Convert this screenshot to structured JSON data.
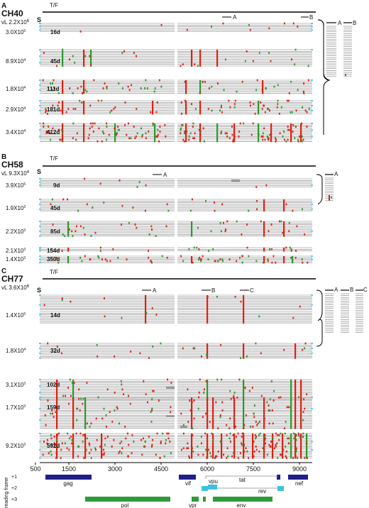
{
  "panels": [
    {
      "letter": "A",
      "name": "CH40",
      "vl": "vL 2.2X10",
      "vl_exp": "6",
      "tf_label": "T/F",
      "s_label": "S",
      "reference_segments": [
        "A",
        "B"
      ],
      "side_columns": [
        "A",
        "B"
      ],
      "groups": [
        {
          "load": "3.0X10",
          "exp": "5",
          "day": "16d"
        },
        {
          "load": "8.9X10",
          "exp": "4",
          "day": "45d"
        },
        {
          "load": "1.8X10",
          "exp": "4",
          "day": "111d"
        },
        {
          "load": "2.9X10",
          "exp": "4",
          "day": "181d"
        },
        {
          "load": "3.4X10",
          "exp": "4",
          "day": "412d"
        }
      ]
    },
    {
      "letter": "B",
      "name": "CH58",
      "vl": "vL 9.3X10",
      "vl_exp": "4",
      "tf_label": "T/F",
      "s_label": "S",
      "reference_segments": [
        "A"
      ],
      "side_columns": [
        "A"
      ],
      "groups": [
        {
          "load": "3.9X10",
          "exp": "5",
          "day": "9d"
        },
        {
          "load": "1.9X10",
          "exp": "3",
          "day": "45d"
        },
        {
          "load": "2.2X10",
          "exp": "3",
          "day": "85d"
        },
        {
          "load": "2.1X10",
          "exp": "3",
          "day": "154d"
        },
        {
          "load": "1.4X10",
          "exp": "3",
          "day": "350d"
        }
      ]
    },
    {
      "letter": "C",
      "name": "CH77",
      "vl": "vL 3.6X10",
      "vl_exp": "6",
      "tf_label": "T/F",
      "s_label": "S",
      "reference_segments": [
        "A",
        "B",
        "C"
      ],
      "side_columns": [
        "A",
        "B",
        "C"
      ],
      "groups": [
        {
          "load": "1.4X10",
          "exp": "5",
          "day": "14d"
        },
        {
          "load": "1.8X10",
          "exp": "4",
          "day": "32d"
        },
        {
          "load": "3.1X10",
          "exp": "3",
          "day": "102d"
        },
        {
          "load": "1.7X10",
          "exp": "3",
          "day": "159d"
        },
        {
          "load": "9.2X10",
          "exp": "3",
          "day": "592d"
        }
      ]
    }
  ],
  "axis": {
    "ticks": [
      "500",
      "1500",
      "3000",
      "4500",
      "6000",
      "7500",
      "9000"
    ],
    "xlabel": "reading frame",
    "frames": [
      "+1",
      "+2",
      "+3"
    ]
  },
  "genes": {
    "gag": "gag",
    "pol": "pol",
    "vif": "vif",
    "vpu": "vpu",
    "tat": "tat",
    "rev": "rev",
    "nef": "nef",
    "vpr": "vpr",
    "env": "env"
  },
  "colors": {
    "mutation_red": "#e02010",
    "mutation_green": "#2a9a2a",
    "gap_cyan": "#5bc8e8",
    "deletion_gray": "#9a9a9a",
    "gene_navy": "#1f1f8a",
    "gene_green": "#2f9a3a",
    "gene_cyan": "#40c0e0",
    "sequence_line": "#7a7a7a"
  }
}
